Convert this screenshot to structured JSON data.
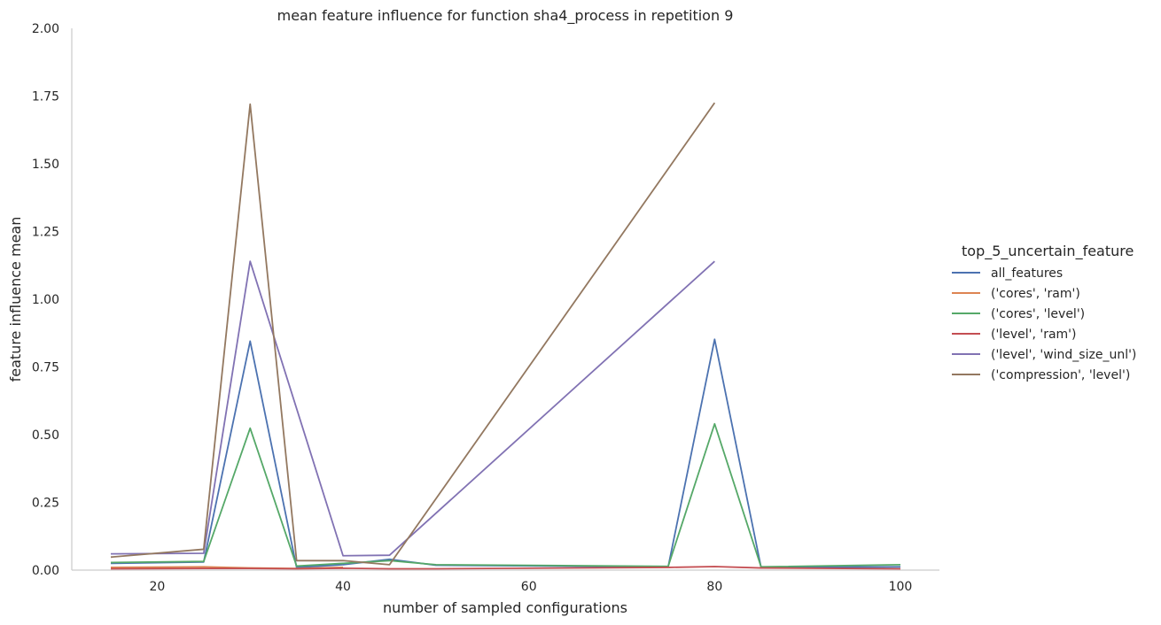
{
  "chart_data": {
    "type": "line",
    "title": "mean feature influence for function sha4_process in repetition 9",
    "xlabel": "number of sampled configurations",
    "ylabel": "feature influence mean",
    "xlim": [
      10.8,
      104.2
    ],
    "ylim": [
      0,
      2.0
    ],
    "xticks": [
      20,
      40,
      60,
      80,
      100
    ],
    "xtick_labels": [
      "20",
      "40",
      "60",
      "80",
      "100"
    ],
    "yticks": [
      0,
      0.25,
      0.5,
      0.75,
      1.0,
      1.25,
      1.5,
      1.75,
      2.0
    ],
    "ytick_labels": [
      "0.00",
      "0.25",
      "0.50",
      "0.75",
      "1.00",
      "1.25",
      "1.50",
      "1.75",
      "2.00"
    ],
    "grid": false,
    "legend_title": "top_5_uncertain_feature",
    "legend_position": "right",
    "series": [
      {
        "name": "all_features",
        "color": "#4c72b0",
        "points": [
          [
            15,
            0.025
          ],
          [
            25,
            0.03
          ],
          [
            30,
            0.845
          ],
          [
            35,
            0.01
          ],
          [
            40,
            0.02
          ],
          [
            45,
            0.04
          ],
          [
            50,
            0.018
          ],
          [
            75,
            0.012
          ],
          [
            80,
            0.852
          ],
          [
            85,
            0.01
          ],
          [
            100,
            0.012
          ]
        ]
      },
      {
        "name": "('cores', 'ram')",
        "color": "#dd8452",
        "points": [
          [
            15,
            0.01
          ],
          [
            25,
            0.012
          ],
          [
            30,
            0.008
          ],
          [
            35,
            0.006
          ],
          [
            40,
            0.01
          ]
        ]
      },
      {
        "name": "('cores', 'level')",
        "color": "#55a868",
        "points": [
          [
            15,
            0.028
          ],
          [
            25,
            0.032
          ],
          [
            30,
            0.524
          ],
          [
            35,
            0.015
          ],
          [
            40,
            0.025
          ],
          [
            45,
            0.035
          ],
          [
            50,
            0.02
          ],
          [
            75,
            0.014
          ],
          [
            80,
            0.54
          ],
          [
            85,
            0.012
          ],
          [
            100,
            0.02
          ]
        ]
      },
      {
        "name": "('level', 'ram')",
        "color": "#c44e52",
        "points": [
          [
            15,
            0.005
          ],
          [
            25,
            0.006
          ],
          [
            30,
            0.006
          ],
          [
            35,
            0.005
          ],
          [
            40,
            0.007
          ],
          [
            45,
            0.005
          ],
          [
            50,
            0.005
          ],
          [
            75,
            0.01
          ],
          [
            80,
            0.013
          ],
          [
            85,
            0.008
          ],
          [
            100,
            0.005
          ]
        ]
      },
      {
        "name": "('level', 'wind_size_unl')",
        "color": "#8172b3",
        "points": [
          [
            15,
            0.06
          ],
          [
            25,
            0.062
          ],
          [
            30,
            1.14
          ],
          [
            40,
            0.053
          ],
          [
            45,
            0.055
          ],
          [
            80,
            1.14
          ]
        ]
      },
      {
        "name": "('compression', 'level')",
        "color": "#937860",
        "points": [
          [
            15,
            0.048
          ],
          [
            25,
            0.077
          ],
          [
            30,
            1.72
          ],
          [
            35,
            0.035
          ],
          [
            40,
            0.035
          ],
          [
            45,
            0.02
          ],
          [
            80,
            1.725
          ]
        ]
      }
    ]
  }
}
